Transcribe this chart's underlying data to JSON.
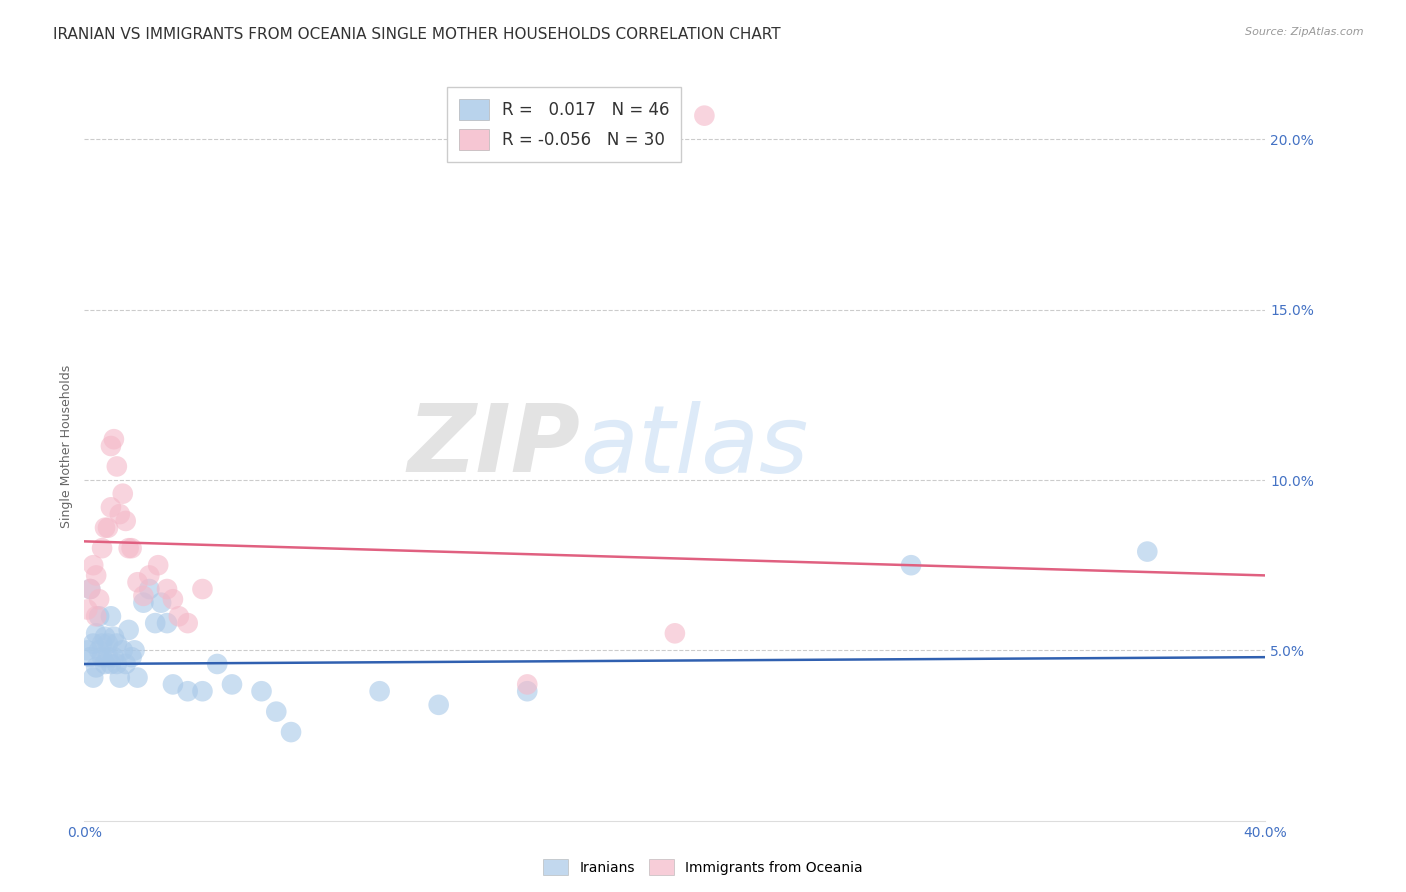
{
  "title": "IRANIAN VS IMMIGRANTS FROM OCEANIA SINGLE MOTHER HOUSEHOLDS CORRELATION CHART",
  "source": "Source: ZipAtlas.com",
  "ylabel": "Single Mother Households",
  "xlim": [
    0.0,
    0.4
  ],
  "ylim": [
    0.0,
    0.22
  ],
  "yticks": [
    0.05,
    0.1,
    0.15,
    0.2
  ],
  "ytick_labels": [
    "5.0%",
    "10.0%",
    "15.0%",
    "20.0%"
  ],
  "xticks": [
    0.0,
    0.4
  ],
  "xtick_labels": [
    "0.0%",
    "40.0%"
  ],
  "watermark_zip": "ZIP",
  "watermark_atlas": "atlas",
  "iranian_color": "#a8c8e8",
  "oceania_color": "#f4b8c8",
  "iranian_line_color": "#3060b0",
  "oceania_line_color": "#e06080",
  "background_color": "#ffffff",
  "grid_color": "#cccccc",
  "iranians_x": [
    0.001,
    0.002,
    0.002,
    0.003,
    0.003,
    0.004,
    0.004,
    0.005,
    0.005,
    0.006,
    0.006,
    0.007,
    0.007,
    0.008,
    0.008,
    0.009,
    0.009,
    0.01,
    0.01,
    0.011,
    0.011,
    0.012,
    0.013,
    0.014,
    0.015,
    0.016,
    0.017,
    0.018,
    0.02,
    0.022,
    0.024,
    0.026,
    0.028,
    0.03,
    0.035,
    0.04,
    0.045,
    0.05,
    0.06,
    0.065,
    0.07,
    0.1,
    0.12,
    0.15,
    0.28,
    0.36
  ],
  "iranians_y": [
    0.05,
    0.048,
    0.068,
    0.052,
    0.042,
    0.045,
    0.055,
    0.05,
    0.06,
    0.048,
    0.052,
    0.046,
    0.054,
    0.048,
    0.052,
    0.046,
    0.06,
    0.048,
    0.054,
    0.046,
    0.052,
    0.042,
    0.05,
    0.046,
    0.056,
    0.048,
    0.05,
    0.042,
    0.064,
    0.068,
    0.058,
    0.064,
    0.058,
    0.04,
    0.038,
    0.038,
    0.046,
    0.04,
    0.038,
    0.032,
    0.026,
    0.038,
    0.034,
    0.038,
    0.075,
    0.079
  ],
  "oceania_x": [
    0.001,
    0.002,
    0.003,
    0.004,
    0.004,
    0.005,
    0.006,
    0.007,
    0.008,
    0.009,
    0.009,
    0.01,
    0.011,
    0.012,
    0.013,
    0.014,
    0.015,
    0.016,
    0.018,
    0.02,
    0.022,
    0.025,
    0.028,
    0.03,
    0.032,
    0.035,
    0.04,
    0.15,
    0.2,
    0.21
  ],
  "oceania_y": [
    0.062,
    0.068,
    0.075,
    0.06,
    0.072,
    0.065,
    0.08,
    0.086,
    0.086,
    0.092,
    0.11,
    0.112,
    0.104,
    0.09,
    0.096,
    0.088,
    0.08,
    0.08,
    0.07,
    0.066,
    0.072,
    0.075,
    0.068,
    0.065,
    0.06,
    0.058,
    0.068,
    0.04,
    0.055,
    0.207
  ],
  "iran_line_x": [
    0.0,
    0.4
  ],
  "iran_line_y": [
    0.046,
    0.048
  ],
  "oce_line_x": [
    0.0,
    0.4
  ],
  "oce_line_y": [
    0.082,
    0.072
  ],
  "iranian_r": 0.017,
  "iranian_n": 46,
  "oceania_r": -0.056,
  "oceania_n": 30,
  "title_fontsize": 11,
  "axis_label_fontsize": 9,
  "tick_fontsize": 10,
  "legend_fontsize": 12
}
